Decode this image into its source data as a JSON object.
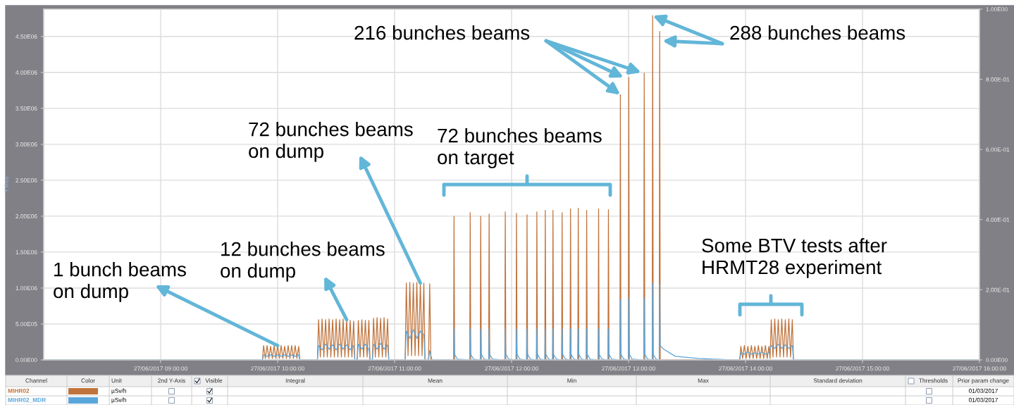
{
  "chart_data": {
    "type": "line",
    "ylabel": "Y Axis",
    "xlim": [
      "2017-06-27T08:00",
      "2017-06-27T16:00"
    ],
    "xticks": [
      {
        "value": "2017-06-27T09:00",
        "label": "27/06/2017 09:00:00"
      },
      {
        "value": "2017-06-27T10:00",
        "label": "27/06/2017 10:00:00"
      },
      {
        "value": "2017-06-27T11:00",
        "label": "27/06/2017 11:00:00"
      },
      {
        "value": "2017-06-27T12:00",
        "label": "27/06/2017 12:00:00"
      },
      {
        "value": "2017-06-27T13:00",
        "label": "27/06/2017 13:00:00"
      },
      {
        "value": "2017-06-27T14:00",
        "label": "27/06/2017 14:00:00"
      },
      {
        "value": "2017-06-27T15:00",
        "label": "27/06/2017 15:00:00"
      },
      {
        "value": "2017-06-27T16:00",
        "label": "27/06/2017 16:00:00"
      }
    ],
    "ylim": [
      0,
      4880000
    ],
    "yticks": [
      {
        "value": 0,
        "label": "0.00E00"
      },
      {
        "value": 500000,
        "label": "5.00E05"
      },
      {
        "value": 1000000,
        "label": "1.00E06"
      },
      {
        "value": 1500000,
        "label": "1.50E06"
      },
      {
        "value": 2000000,
        "label": "2.00E06"
      },
      {
        "value": 2500000,
        "label": "2.50E06"
      },
      {
        "value": 3000000,
        "label": "3.00E06"
      },
      {
        "value": 3500000,
        "label": "3.50E06"
      },
      {
        "value": 4000000,
        "label": "4.00E06"
      },
      {
        "value": 4500000,
        "label": "4.50E06"
      }
    ],
    "y2lim": [
      0,
      1.0
    ],
    "y2ticks": [
      {
        "value": 0,
        "label": "0.00E00"
      },
      {
        "value": 0.2,
        "label": "2.00E-01"
      },
      {
        "value": 0.4,
        "label": "4.00E-01"
      },
      {
        "value": 0.6,
        "label": "6.00E-01"
      },
      {
        "value": 0.8,
        "label": "8.00E-01"
      },
      {
        "value": 1.0,
        "label": "1.00E00"
      }
    ],
    "grid": true,
    "legend": "bottom",
    "series": [
      {
        "name": "MIHR02",
        "color": "#c0733b",
        "x": [
          "2017-06-27T08:00:00",
          "2017-06-27T09:52:12",
          "2017-06-27T09:52:48",
          "2017-06-27T09:53:42",
          "2017-06-27T09:54:36",
          "2017-06-27T09:55:30",
          "2017-06-27T09:56:24",
          "2017-06-27T09:57:18",
          "2017-06-27T09:58:12",
          "2017-06-27T09:59:06",
          "2017-06-27T10:00:00",
          "2017-06-27T10:00:54",
          "2017-06-27T10:01:48",
          "2017-06-27T10:02:42",
          "2017-06-27T10:03:36",
          "2017-06-27T10:04:30",
          "2017-06-27T10:05:24",
          "2017-06-27T10:06:18",
          "2017-06-27T10:07:12",
          "2017-06-27T10:08:06",
          "2017-06-27T10:09:00",
          "2017-06-27T10:09:54",
          "2017-06-27T10:10:48",
          "2017-06-27T10:11:24",
          "2017-06-27T10:20:24",
          "2017-06-27T10:21:00",
          "2017-06-27T10:21:54",
          "2017-06-27T10:22:48",
          "2017-06-27T10:23:42",
          "2017-06-27T10:24:36",
          "2017-06-27T10:25:30",
          "2017-06-27T10:26:24",
          "2017-06-27T10:27:18",
          "2017-06-27T10:28:12",
          "2017-06-27T10:29:06",
          "2017-06-27T10:30:00",
          "2017-06-27T10:30:54",
          "2017-06-27T10:31:48",
          "2017-06-27T10:32:42",
          "2017-06-27T10:33:36",
          "2017-06-27T10:34:30",
          "2017-06-27T10:35:24",
          "2017-06-27T10:36:18",
          "2017-06-27T10:37:12",
          "2017-06-27T10:38:06",
          "2017-06-27T10:39:00",
          "2017-06-27T10:39:36",
          "2017-06-27T10:40:48",
          "2017-06-27T10:41:24",
          "2017-06-27T10:42:18",
          "2017-06-27T10:43:12",
          "2017-06-27T10:44:06",
          "2017-06-27T10:45:00",
          "2017-06-27T10:45:54",
          "2017-06-27T10:46:48",
          "2017-06-27T10:47:24",
          "2017-06-27T10:48:36",
          "2017-06-27T10:49:12",
          "2017-06-27T10:50:06",
          "2017-06-27T10:51:00",
          "2017-06-27T10:51:54",
          "2017-06-27T10:52:48",
          "2017-06-27T10:53:42",
          "2017-06-27T10:54:36",
          "2017-06-27T10:55:30",
          "2017-06-27T10:56:24",
          "2017-06-27T10:57:00",
          "2017-06-27T11:05:24",
          "2017-06-27T11:06:00",
          "2017-06-27T11:06:54",
          "2017-06-27T11:07:48",
          "2017-06-27T11:08:42",
          "2017-06-27T11:09:36",
          "2017-06-27T11:10:30",
          "2017-06-27T11:11:24",
          "2017-06-27T11:12:18",
          "2017-06-27T11:13:12",
          "2017-06-27T11:14:06",
          "2017-06-27T11:15:00",
          "2017-06-27T11:15:36",
          "2017-06-27T11:17:24",
          "2017-06-27T11:18:00",
          "2017-06-27T11:18:36",
          "2017-06-27T11:30:15",
          "2017-06-27T11:30:29",
          "2017-06-27T11:30:47",
          "2017-06-27T11:38:32",
          "2017-06-27T11:38:46",
          "2017-06-27T11:39:04",
          "2017-06-27T11:43:56",
          "2017-06-27T11:44:10",
          "2017-06-27T11:44:28",
          "2017-06-27T11:48:15",
          "2017-06-27T11:48:29",
          "2017-06-27T11:48:47",
          "2017-06-27T11:56:32",
          "2017-06-27T11:56:46",
          "2017-06-27T11:57:04",
          "2017-06-27T12:02:17",
          "2017-06-27T12:02:31",
          "2017-06-27T12:02:49",
          "2017-06-27T12:07:41",
          "2017-06-27T12:07:55",
          "2017-06-27T12:08:13",
          "2017-06-27T12:12:44",
          "2017-06-27T12:12:58",
          "2017-06-27T12:13:16",
          "2017-06-27T12:17:03",
          "2017-06-27T12:17:17",
          "2017-06-27T12:17:35",
          "2017-06-27T12:21:00",
          "2017-06-27T12:21:14",
          "2017-06-27T12:21:32",
          "2017-06-27T12:25:41",
          "2017-06-27T12:25:55",
          "2017-06-27T12:26:13",
          "2017-06-27T12:30:00",
          "2017-06-27T12:30:14",
          "2017-06-27T12:30:32",
          "2017-06-27T12:33:58",
          "2017-06-27T12:34:12",
          "2017-06-27T12:34:30",
          "2017-06-27T12:38:17",
          "2017-06-27T12:38:31",
          "2017-06-27T12:38:49",
          "2017-06-27T12:44:24",
          "2017-06-27T12:44:38",
          "2017-06-27T12:44:56",
          "2017-06-27T12:49:27",
          "2017-06-27T12:49:41",
          "2017-06-27T12:49:59",
          "2017-06-27T12:55:34",
          "2017-06-27T12:55:48",
          "2017-06-27T12:56:06",
          "2017-06-27T12:59:53",
          "2017-06-27T13:00:07",
          "2017-06-27T13:00:25",
          "2017-06-27T13:07:48",
          "2017-06-27T13:08:02",
          "2017-06-27T13:08:20",
          "2017-06-27T13:12:08",
          "2017-06-27T13:12:22",
          "2017-06-27T13:12:40",
          "2017-06-27T13:15:44",
          "2017-06-27T13:15:58",
          "2017-06-27T13:16:16",
          "2017-06-27T13:57:00",
          "2017-06-27T13:57:36",
          "2017-06-27T13:58:30",
          "2017-06-27T13:59:24",
          "2017-06-27T14:00:18",
          "2017-06-27T14:01:12",
          "2017-06-27T14:02:06",
          "2017-06-27T14:03:00",
          "2017-06-27T14:03:54",
          "2017-06-27T14:04:48",
          "2017-06-27T14:05:42",
          "2017-06-27T14:06:36",
          "2017-06-27T14:07:30",
          "2017-06-27T14:08:24",
          "2017-06-27T14:09:18",
          "2017-06-27T14:10:12",
          "2017-06-27T14:11:06",
          "2017-06-27T14:12:00",
          "2017-06-27T14:12:36",
          "2017-06-27T14:13:12",
          "2017-06-27T14:14:06",
          "2017-06-27T14:15:00",
          "2017-06-27T14:15:54",
          "2017-06-27T14:16:48",
          "2017-06-27T14:17:42",
          "2017-06-27T14:18:36",
          "2017-06-27T14:19:30",
          "2017-06-27T14:20:24",
          "2017-06-27T14:21:18",
          "2017-06-27T14:22:12",
          "2017-06-27T14:23:06",
          "2017-06-27T14:24:00",
          "2017-06-27T14:24:36",
          "2017-06-27T16:00:00"
        ],
        "values": [
          0,
          0,
          200000,
          20000,
          200000,
          20000,
          190000,
          20000,
          200000,
          20000,
          200000,
          20000,
          200000,
          20000,
          190000,
          20000,
          200000,
          20000,
          200000,
          20000,
          200000,
          20000,
          190000,
          0,
          0,
          560000,
          40000,
          570000,
          40000,
          560000,
          40000,
          570000,
          40000,
          560000,
          40000,
          570000,
          40000,
          560000,
          40000,
          570000,
          40000,
          560000,
          40000,
          550000,
          40000,
          540000,
          0,
          0,
          550000,
          40000,
          560000,
          40000,
          550000,
          40000,
          550000,
          0,
          0,
          580000,
          40000,
          590000,
          40000,
          580000,
          40000,
          590000,
          40000,
          570000,
          0,
          0,
          1070000,
          60000,
          1080000,
          60000,
          1070000,
          60000,
          1080000,
          60000,
          1070000,
          60000,
          1070000,
          0,
          0,
          1060000,
          0,
          0,
          2000000,
          0,
          0,
          2050000,
          0,
          0,
          2000000,
          0,
          0,
          2030000,
          0,
          0,
          2060000,
          0,
          0,
          2040000,
          0,
          0,
          2020000,
          0,
          0,
          2060000,
          0,
          0,
          2080000,
          0,
          0,
          2080000,
          0,
          0,
          2050000,
          0,
          0,
          2100000,
          0,
          0,
          2110000,
          0,
          0,
          2080000,
          0,
          0,
          2100000,
          0,
          0,
          2090000,
          0,
          0,
          3690000,
          0,
          0,
          3930000,
          0,
          0,
          3990000,
          0,
          0,
          4790000,
          0,
          0,
          4570000,
          0,
          0,
          190000,
          20000,
          200000,
          20000,
          190000,
          20000,
          200000,
          20000,
          190000,
          20000,
          200000,
          20000,
          190000,
          20000,
          200000,
          20000,
          190000,
          20000,
          560000,
          40000,
          570000,
          40000,
          560000,
          40000,
          570000,
          40000,
          560000,
          40000,
          570000,
          40000,
          560000,
          0,
          0
        ]
      },
      {
        "name": "MIHR02_MDR",
        "color": "#5aa6dc",
        "x": [
          "2017-06-27T08:00:00",
          "2017-06-27T09:52:12",
          "2017-06-27T09:52:48",
          "2017-06-27T09:54:36",
          "2017-06-27T09:56:24",
          "2017-06-27T09:58:12",
          "2017-06-27T10:00:00",
          "2017-06-27T10:01:48",
          "2017-06-27T10:03:36",
          "2017-06-27T10:05:24",
          "2017-06-27T10:07:12",
          "2017-06-27T10:09:00",
          "2017-06-27T10:10:48",
          "2017-06-27T10:11:24",
          "2017-06-27T10:20:24",
          "2017-06-27T10:21:00",
          "2017-06-27T10:22:48",
          "2017-06-27T10:24:36",
          "2017-06-27T10:26:24",
          "2017-06-27T10:28:12",
          "2017-06-27T10:30:00",
          "2017-06-27T10:31:48",
          "2017-06-27T10:33:36",
          "2017-06-27T10:35:24",
          "2017-06-27T10:37:12",
          "2017-06-27T10:39:00",
          "2017-06-27T10:39:36",
          "2017-06-27T10:40:48",
          "2017-06-27T10:41:24",
          "2017-06-27T10:43:12",
          "2017-06-27T10:45:00",
          "2017-06-27T10:46:48",
          "2017-06-27T10:47:24",
          "2017-06-27T10:48:36",
          "2017-06-27T10:49:12",
          "2017-06-27T10:51:00",
          "2017-06-27T10:52:48",
          "2017-06-27T10:54:36",
          "2017-06-27T10:56:24",
          "2017-06-27T10:57:00",
          "2017-06-27T11:05:24",
          "2017-06-27T11:06:00",
          "2017-06-27T11:07:48",
          "2017-06-27T11:09:36",
          "2017-06-27T11:11:24",
          "2017-06-27T11:13:12",
          "2017-06-27T11:15:00",
          "2017-06-27T11:15:36",
          "2017-06-27T11:17:24",
          "2017-06-27T11:18:00",
          "2017-06-27T11:19:12",
          "2017-06-27T11:30:18",
          "2017-06-27T11:30:29",
          "2017-06-27T11:30:43",
          "2017-06-27T11:32:17",
          "2017-06-27T11:38:35",
          "2017-06-27T11:38:46",
          "2017-06-27T11:39:00",
          "2017-06-27T11:40:34",
          "2017-06-27T11:43:59",
          "2017-06-27T11:44:10",
          "2017-06-27T11:44:24",
          "2017-06-27T11:45:58",
          "2017-06-27T11:48:18",
          "2017-06-27T11:48:29",
          "2017-06-27T11:48:43",
          "2017-06-27T11:50:17",
          "2017-06-27T11:56:35",
          "2017-06-27T11:56:46",
          "2017-06-27T11:57:00",
          "2017-06-27T11:58:34",
          "2017-06-27T12:02:20",
          "2017-06-27T12:02:31",
          "2017-06-27T12:02:45",
          "2017-06-27T12:04:19",
          "2017-06-27T12:07:44",
          "2017-06-27T12:07:55",
          "2017-06-27T12:08:09",
          "2017-06-27T12:09:43",
          "2017-06-27T12:12:47",
          "2017-06-27T12:12:58",
          "2017-06-27T12:13:12",
          "2017-06-27T12:14:46",
          "2017-06-27T12:17:06",
          "2017-06-27T12:17:17",
          "2017-06-27T12:17:31",
          "2017-06-27T12:19:05",
          "2017-06-27T12:21:03",
          "2017-06-27T12:21:14",
          "2017-06-27T12:21:28",
          "2017-06-27T12:23:02",
          "2017-06-27T12:25:44",
          "2017-06-27T12:25:55",
          "2017-06-27T12:26:09",
          "2017-06-27T12:27:43",
          "2017-06-27T12:30:03",
          "2017-06-27T12:30:14",
          "2017-06-27T12:30:28",
          "2017-06-27T12:32:02",
          "2017-06-27T12:34:01",
          "2017-06-27T12:34:12",
          "2017-06-27T12:34:26",
          "2017-06-27T12:36:00",
          "2017-06-27T12:38:20",
          "2017-06-27T12:38:31",
          "2017-06-27T12:38:45",
          "2017-06-27T12:40:19",
          "2017-06-27T12:44:27",
          "2017-06-27T12:44:38",
          "2017-06-27T12:44:52",
          "2017-06-27T12:46:26",
          "2017-06-27T12:49:30",
          "2017-06-27T12:49:41",
          "2017-06-27T12:49:55",
          "2017-06-27T12:51:29",
          "2017-06-27T12:55:37",
          "2017-06-27T12:55:48",
          "2017-06-27T12:56:02",
          "2017-06-27T12:57:36",
          "2017-06-27T12:59:56",
          "2017-06-27T13:00:07",
          "2017-06-27T13:00:21",
          "2017-06-27T13:01:55",
          "2017-06-27T13:07:51",
          "2017-06-27T13:08:02",
          "2017-06-27T13:08:16",
          "2017-06-27T13:09:50",
          "2017-06-27T13:12:11",
          "2017-06-27T13:12:22",
          "2017-06-27T13:12:36",
          "2017-06-27T13:14:10",
          "2017-06-27T13:15:47",
          "2017-06-27T13:15:58",
          "2017-06-27T13:16:12",
          "2017-06-27T13:18:00",
          "2017-06-27T13:24:00",
          "2017-06-27T13:36:00",
          "2017-06-27T13:54:00",
          "2017-06-27T13:57:00",
          "2017-06-27T13:57:36",
          "2017-06-27T13:59:24",
          "2017-06-27T14:01:12",
          "2017-06-27T14:03:00",
          "2017-06-27T14:04:48",
          "2017-06-27T14:06:36",
          "2017-06-27T14:08:24",
          "2017-06-27T14:10:12",
          "2017-06-27T14:12:00",
          "2017-06-27T14:13:12",
          "2017-06-27T14:15:00",
          "2017-06-27T14:16:48",
          "2017-06-27T14:18:36",
          "2017-06-27T14:20:24",
          "2017-06-27T14:22:12",
          "2017-06-27T14:24:00",
          "2017-06-27T14:24:36",
          "2017-06-27T16:00:00"
        ],
        "values": [
          0,
          0,
          70000,
          50000,
          70000,
          50000,
          70000,
          50000,
          70000,
          50000,
          70000,
          50000,
          70000,
          0,
          0,
          200000,
          140000,
          220000,
          150000,
          210000,
          140000,
          220000,
          150000,
          210000,
          140000,
          200000,
          0,
          0,
          220000,
          150000,
          220000,
          150000,
          0,
          0,
          220000,
          150000,
          230000,
          150000,
          210000,
          0,
          0,
          400000,
          300000,
          420000,
          300000,
          400000,
          350000,
          0,
          0,
          130000,
          0,
          0,
          430000,
          80000,
          10000,
          0,
          430000,
          80000,
          10000,
          0,
          430000,
          80000,
          10000,
          0,
          430000,
          80000,
          10000,
          0,
          430000,
          80000,
          10000,
          0,
          430000,
          80000,
          10000,
          0,
          430000,
          80000,
          10000,
          0,
          430000,
          80000,
          10000,
          0,
          430000,
          80000,
          10000,
          0,
          430000,
          80000,
          10000,
          0,
          430000,
          80000,
          10000,
          0,
          430000,
          80000,
          10000,
          0,
          430000,
          80000,
          10000,
          0,
          430000,
          80000,
          10000,
          0,
          430000,
          80000,
          10000,
          0,
          430000,
          80000,
          10000,
          0,
          840000,
          80000,
          10000,
          0,
          860000,
          80000,
          10000,
          0,
          860000,
          80000,
          10000,
          0,
          1070000,
          80000,
          10000,
          0,
          1060000,
          200000,
          150000,
          50000,
          20000,
          0,
          0,
          100000,
          80000,
          110000,
          80000,
          100000,
          80000,
          110000,
          80000,
          100000,
          200000,
          160000,
          220000,
          160000,
          210000,
          160000,
          200000,
          0,
          0
        ]
      }
    ],
    "annotations": [
      {
        "text": "1 bunch beams\non dump",
        "x": "2017-06-27T10:00:00",
        "y": 200000
      },
      {
        "text": "12 bunches beams\non dump",
        "x": "2017-06-27T10:35:24",
        "y": 560000
      },
      {
        "text": "72 bunches beams\non dump",
        "x": "2017-06-27T11:13:12",
        "y": 1070000
      },
      {
        "text": "216 bunches beams",
        "x": "2017-06-27T12:55:48",
        "y": 3690000
      },
      {
        "text": "288 bunches beams",
        "x": "2017-06-27T13:12:22",
        "y": 4790000
      },
      "72 bunches beams\non target",
      "Some BTV tests after\nHRMT28 experiment",
      "Channel",
      "Color",
      "Unit",
      "2nd Y-Axis",
      "Visible",
      "Integral",
      "Mean",
      "Min",
      "Max",
      "Standard deviation",
      "Thresholds",
      "Prior param change",
      "µSv/h",
      "01/03/2017",
      "µSv/h",
      "01/03/2017"
    ]
  }
}
